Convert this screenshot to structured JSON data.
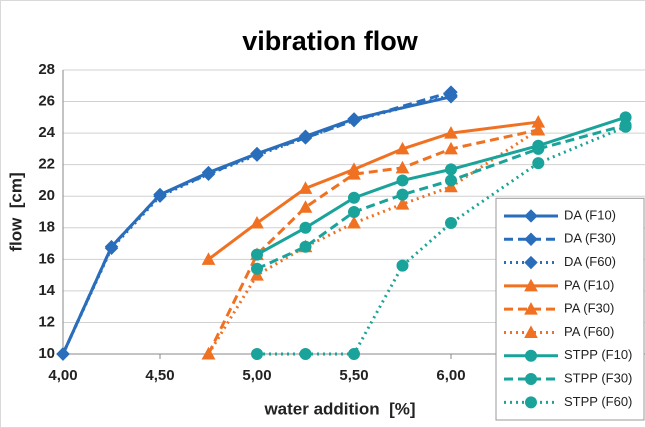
{
  "chart_data": {
    "type": "line",
    "title": "vibration flow",
    "x_label": "water addition  [%]",
    "y_label": "flow  [cm]",
    "xlim": [
      4,
      7
    ],
    "ylim": [
      10,
      28
    ],
    "xticks": [
      {
        "value": 4,
        "label": "4,00"
      },
      {
        "value": 4.5,
        "label": "4,50"
      },
      {
        "value": 5,
        "label": "5,00"
      },
      {
        "value": 5.5,
        "label": "5,50"
      },
      {
        "value": 6,
        "label": "6,00"
      }
    ],
    "yticks": [
      10,
      12,
      14,
      16,
      18,
      20,
      22,
      24,
      26,
      28
    ],
    "grid": true,
    "legend": "lower right",
    "series": [
      {
        "name": "DA (F10)",
        "color": "#2a6ebb",
        "dash": "solid",
        "marker": "diamond",
        "x": [
          4,
          4.25,
          4.5,
          4.75,
          5,
          5.25,
          5.5,
          6
        ],
        "values": [
          10,
          16.8,
          20.1,
          21.5,
          22.7,
          23.8,
          24.9,
          26.3
        ]
      },
      {
        "name": "DA (F30)",
        "color": "#2a6ebb",
        "dash": "dashed",
        "marker": "diamond",
        "x": [
          4,
          4.25,
          4.5,
          4.75,
          5,
          5.25,
          5.5,
          6
        ],
        "values": [
          10,
          16.8,
          20.1,
          21.4,
          22.7,
          23.7,
          24.8,
          26.6
        ]
      },
      {
        "name": "DA (F60)",
        "color": "#2a6ebb",
        "dash": "dotted",
        "marker": "diamond",
        "x": [
          4,
          4.25,
          4.5,
          4.75,
          5,
          5.25,
          5.5,
          6
        ],
        "values": [
          10,
          16.7,
          20,
          21.4,
          22.6,
          23.7,
          24.8,
          26.4
        ]
      },
      {
        "name": "PA (F10)",
        "color": "#f07122",
        "dash": "solid",
        "marker": "triangle",
        "x": [
          4.75,
          5,
          5.25,
          5.5,
          5.75,
          6,
          6.45
        ],
        "values": [
          16,
          18.3,
          20.5,
          21.7,
          23,
          24,
          24.7
        ]
      },
      {
        "name": "PA (F30)",
        "color": "#f07122",
        "dash": "dashed",
        "marker": "triangle",
        "x": [
          4.75,
          5,
          5.25,
          5.5,
          5.75,
          6,
          6.45
        ],
        "values": [
          10,
          16.3,
          19.3,
          21.4,
          21.8,
          23,
          24.2
        ]
      },
      {
        "name": "PA (F60)",
        "color": "#f07122",
        "dash": "dotted",
        "marker": "triangle",
        "x": [
          4.75,
          5,
          5.25,
          5.5,
          5.75,
          6,
          6.45
        ],
        "values": [
          10,
          15,
          16.8,
          18.3,
          19.5,
          20.6,
          24.2
        ]
      },
      {
        "name": "STPP (F10)",
        "color": "#1aa39a",
        "dash": "solid",
        "marker": "circle",
        "x": [
          5,
          5.25,
          5.5,
          5.75,
          6,
          6.45,
          6.9
        ],
        "values": [
          16.3,
          18,
          19.9,
          21,
          21.7,
          23.2,
          25
        ]
      },
      {
        "name": "STPP (F30)",
        "color": "#1aa39a",
        "dash": "dashed",
        "marker": "circle",
        "x": [
          5,
          5.25,
          5.5,
          5.75,
          6,
          6.45,
          6.9
        ],
        "values": [
          15.4,
          16.8,
          19,
          20.1,
          21,
          23,
          24.5
        ]
      },
      {
        "name": "STPP (F60)",
        "color": "#1aa39a",
        "dash": "dotted",
        "marker": "circle",
        "x": [
          5,
          5.25,
          5.5,
          5.75,
          6,
          6.45,
          6.9
        ],
        "values": [
          10,
          10,
          10,
          15.6,
          18.3,
          22.1,
          24.4
        ]
      }
    ]
  }
}
